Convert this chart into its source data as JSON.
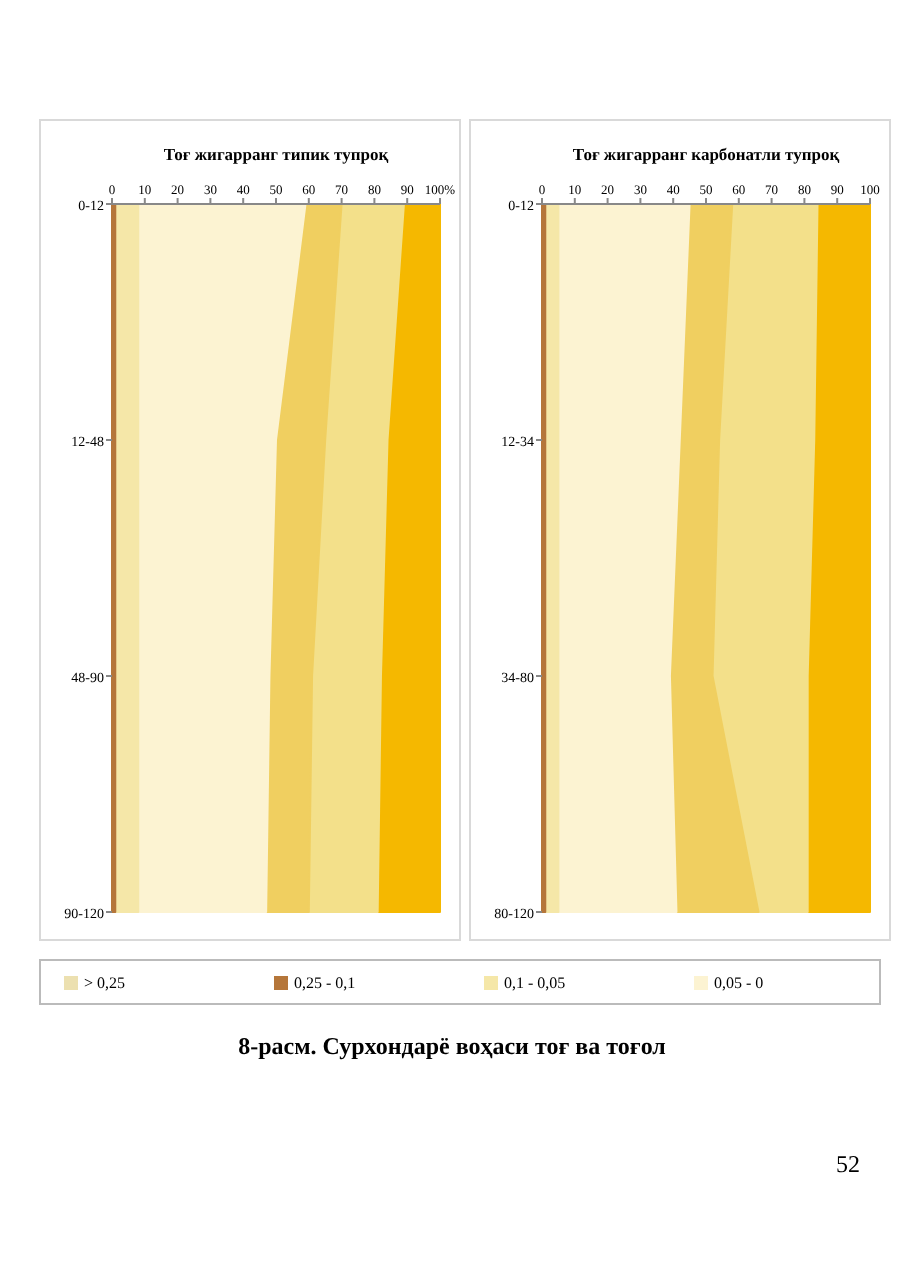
{
  "chart_data": [
    {
      "type": "area",
      "stacked": true,
      "orientation": "horizontal",
      "title": "Тоғ жигарранг типик тупроқ",
      "categories": [
        "0-12",
        "12-48",
        "48-90",
        "90-120"
      ],
      "xlim": [
        0,
        100
      ],
      "xticks": [
        0,
        10,
        20,
        30,
        40,
        50,
        60,
        70,
        80,
        90,
        {
          "value": 100,
          "label": "100%"
        }
      ],
      "legend": "bottom",
      "series": [
        {
          "name": "> 0,25",
          "color": "#ece0b0",
          "values": [
            null,
            null,
            null,
            null
          ]
        },
        {
          "name": "0,25 - 0,1",
          "color": "#b5763a",
          "values": [
            1,
            1,
            1,
            1
          ]
        },
        {
          "name": "0,1 - 0,05",
          "color": "#f5e7a8",
          "values": [
            7,
            7,
            7,
            7
          ]
        },
        {
          "name": "0,05 - 0",
          "color": "#fcf3d2",
          "values": [
            51,
            42,
            40,
            39
          ]
        },
        {
          "color": "#f0cf60",
          "values": [
            11,
            15,
            13,
            13
          ]
        },
        {
          "color": "#f3e08a",
          "values": [
            19,
            19,
            21,
            21
          ]
        },
        {
          "color": "#f5b800",
          "values": [
            11,
            16,
            18,
            19
          ]
        }
      ]
    },
    {
      "type": "area",
      "stacked": true,
      "orientation": "horizontal",
      "title": "Тоғ жигарранг карбонатли тупроқ",
      "categories": [
        "0-12",
        "12-34",
        "34-80",
        "80-120"
      ],
      "xlim": [
        0,
        100
      ],
      "xticks": [
        0,
        10,
        20,
        30,
        40,
        50,
        60,
        70,
        80,
        90,
        {
          "value": 100,
          "label": "100"
        }
      ],
      "annotations": [
        "8-расм. Сурхондарё воҳаси тоғ ва тоғол",
        "52"
      ],
      "series": [
        {
          "color": "#b5763a",
          "values": [
            1,
            1,
            1,
            1
          ]
        },
        {
          "color": "#f5e7a8",
          "values": [
            4,
            4,
            4,
            4
          ]
        },
        {
          "color": "#fcf3d2",
          "values": [
            40,
            37,
            34,
            36
          ]
        },
        {
          "color": "#f0cf60",
          "values": [
            13,
            12,
            13,
            25
          ]
        },
        {
          "color": "#f3e08a",
          "values": [
            26,
            29,
            29,
            15
          ]
        },
        {
          "color": "#f5b800",
          "values": [
            16,
            17,
            19,
            19
          ]
        }
      ]
    }
  ]
}
